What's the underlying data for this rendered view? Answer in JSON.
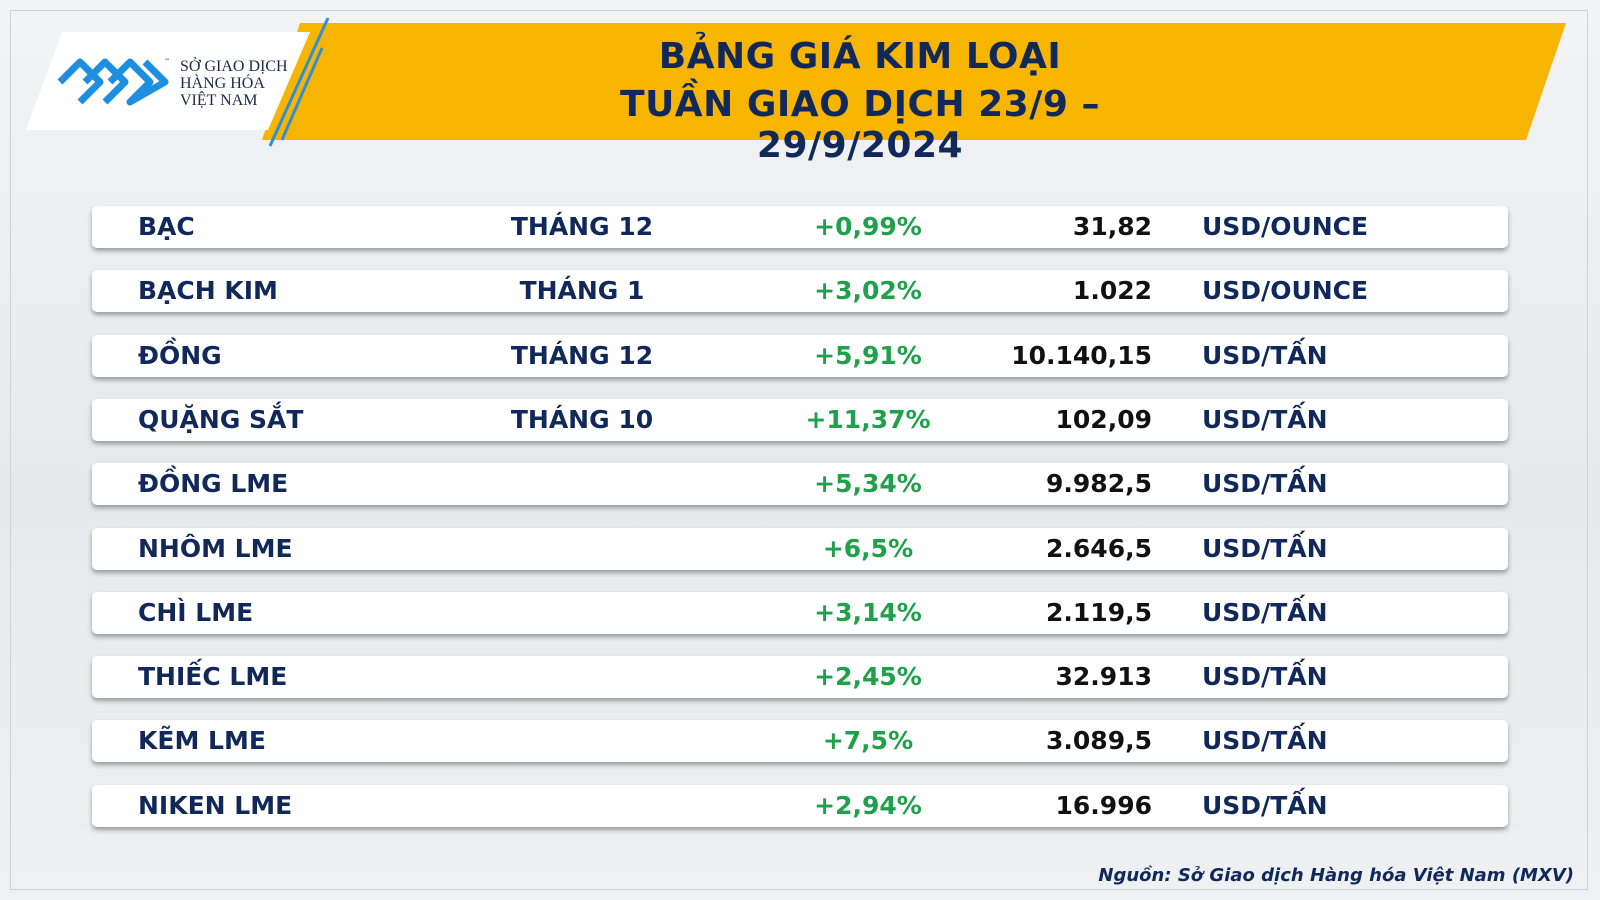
{
  "header": {
    "logo": {
      "trademark": "™",
      "lines": [
        "SỞ GIAO DỊCH",
        "HÀNG HÓA",
        "VIỆT NAM"
      ]
    },
    "title": [
      "BẢNG GIÁ KIM LOẠI",
      "TUẦN GIAO DỊCH 23/9 – 29/9/2024"
    ]
  },
  "table": {
    "rows": [
      {
        "name": "BẠC",
        "month": "THÁNG 12",
        "change": "+0,99%",
        "price": "31,82",
        "unit": "USD/OUNCE"
      },
      {
        "name": "BẠCH KIM",
        "month": "THÁNG 1",
        "change": "+3,02%",
        "price": "1.022",
        "unit": "USD/OUNCE"
      },
      {
        "name": "ĐỒNG",
        "month": "THÁNG 12",
        "change": "+5,91%",
        "price": "10.140,15",
        "unit": "USD/TẤN"
      },
      {
        "name": "QUẶNG SẮT",
        "month": "THÁNG 10",
        "change": "+11,37%",
        "price": "102,09",
        "unit": "USD/TẤN"
      },
      {
        "name": "ĐỒNG LME",
        "change": "+5,34%",
        "price": "9.982,5",
        "unit": "USD/TẤN"
      },
      {
        "name": "NHÔM LME",
        "change": "+6,5%",
        "price": "2.646,5",
        "unit": "USD/TẤN"
      },
      {
        "name": "CHÌ LME",
        "change": "+3,14%",
        "price": "2.119,5",
        "unit": "USD/TẤN"
      },
      {
        "name": "THIẾC LME",
        "change": "+2,45%",
        "price": "32.913",
        "unit": "USD/TẤN"
      },
      {
        "name": "KẼM LME",
        "change": "+7,5%",
        "price": "3.089,5",
        "unit": "USD/TẤN"
      },
      {
        "name": "NIKEN LME",
        "change": "+2,94%",
        "price": "16.996",
        "unit": "USD/TẤN"
      }
    ]
  },
  "footer": {
    "source": "Nguồn: Sở Giao dịch Hàng hóa Việt Nam (MXV)"
  }
}
